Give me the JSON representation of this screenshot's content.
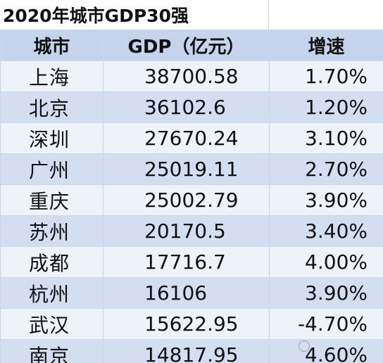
{
  "title": "2020年城市GDP30强",
  "headers": {
    "city": "城市",
    "gdp": "GDP（亿元）",
    "growth": "增速"
  },
  "rows": [
    {
      "city": "上海",
      "gdp": "38700.58",
      "growth": "1.70%"
    },
    {
      "city": "北京",
      "gdp": "36102.6",
      "growth": "1.20%"
    },
    {
      "city": "深圳",
      "gdp": "27670.24",
      "growth": "3.10%"
    },
    {
      "city": "广州",
      "gdp": "25019.11",
      "growth": "2.70%"
    },
    {
      "city": "重庆",
      "gdp": "25002.79",
      "growth": "3.90%"
    },
    {
      "city": "苏州",
      "gdp": "20170.5",
      "growth": "3.40%"
    },
    {
      "city": "成都",
      "gdp": "17716.7",
      "growth": "4.00%"
    },
    {
      "city": "杭州",
      "gdp": "16106",
      "growth": "3.90%"
    },
    {
      "city": "武汉",
      "gdp": "15622.95",
      "growth": "-4.70%"
    },
    {
      "city": "南京",
      "gdp": "14817.95",
      "growth": "4.60%"
    }
  ],
  "colors": {
    "header_bg": "#c5d3ec",
    "row_light": "#eef2f9",
    "row_dark": "#d3def1",
    "border": "#c9d6ea"
  }
}
